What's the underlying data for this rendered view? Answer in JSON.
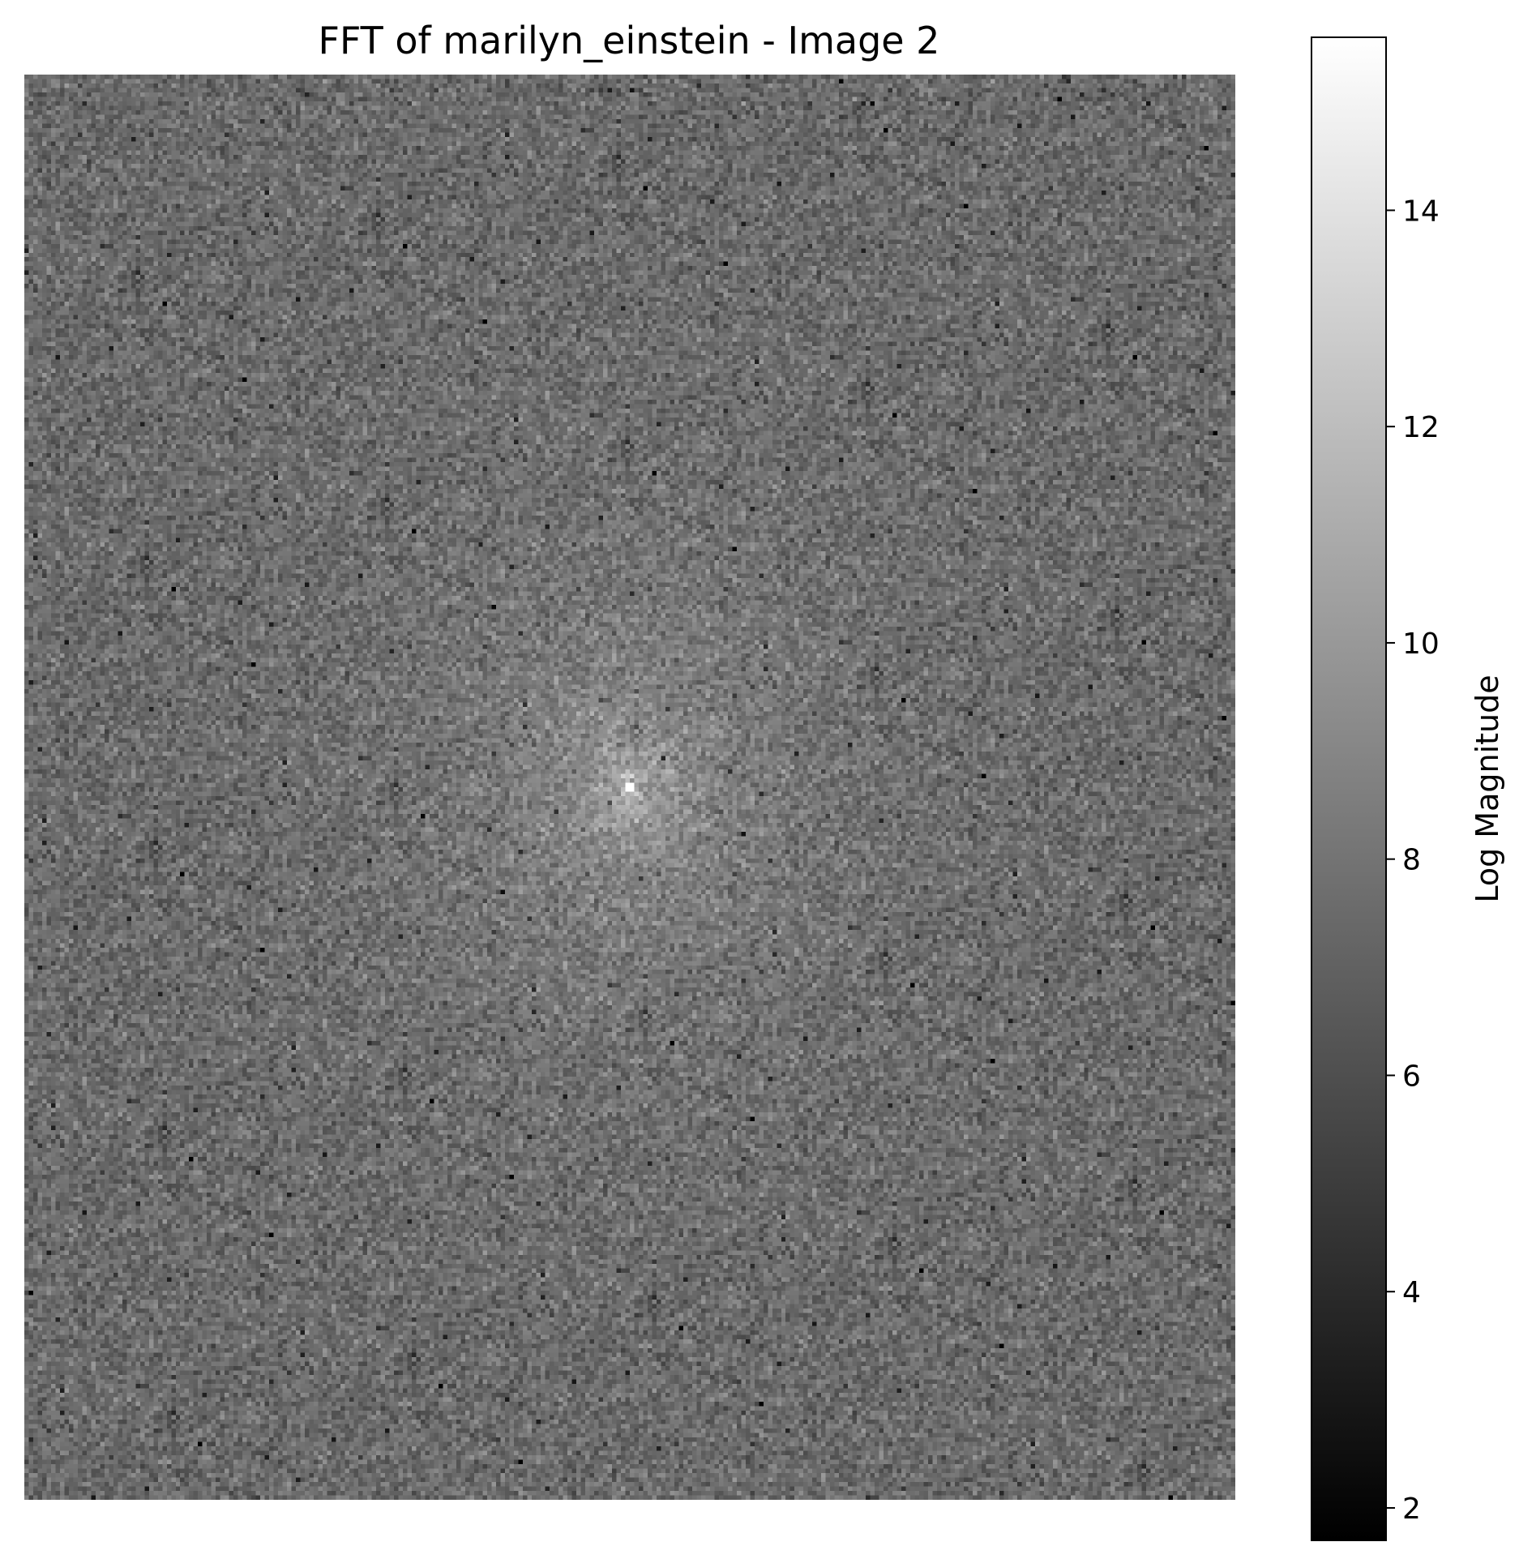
{
  "chart_data": {
    "type": "heatmap",
    "title": "FFT of marilyn_einstein - Image 2",
    "xlabel": "",
    "ylabel": "",
    "axes_visible": false,
    "colormap": "gray",
    "colorbar": {
      "label": "Log Magnitude",
      "range": [
        1.7,
        15.6
      ],
      "ticks": [
        2,
        4,
        6,
        8,
        10,
        12,
        14
      ],
      "tick_labels": [
        "2",
        "4",
        "6",
        "8",
        "10",
        "12",
        "14"
      ],
      "placement": "right"
    },
    "grid": false,
    "image": {
      "rows": 320,
      "cols": 272,
      "center_peak": 15.6,
      "background_level": 7.5,
      "noise_amplitude": 0.9
    }
  }
}
